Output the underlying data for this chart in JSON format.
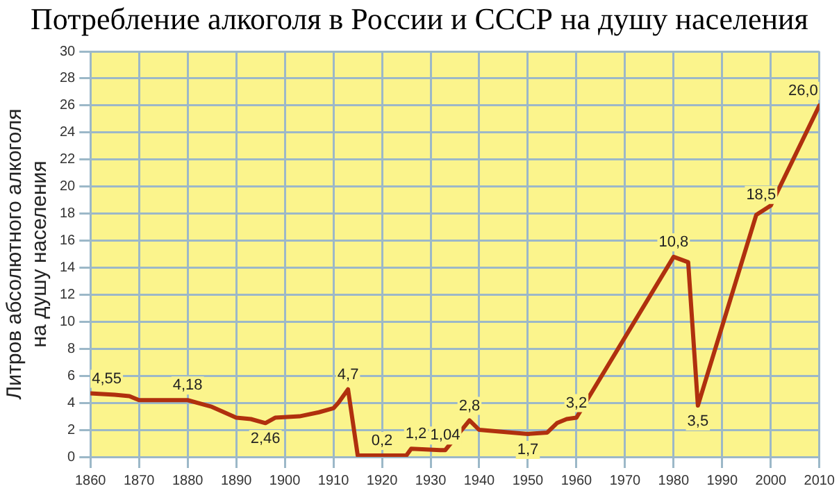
{
  "chart_data": {
    "type": "line",
    "title": "Потребление алкоголя в России и СССР на душу населения",
    "ylabel": "Литров абсолютного алкоголя\nна душу населения",
    "series": [
      {
        "color": "#b0300e",
        "x": [
          1860,
          1865,
          1868,
          1870,
          1880,
          1882,
          1885,
          1890,
          1893,
          1896,
          1898,
          1903,
          1907,
          1910,
          1911,
          1913,
          1915,
          1925,
          1926,
          1932,
          1933,
          1938,
          1940,
          1950,
          1954,
          1956,
          1958,
          1960,
          1980,
          1983,
          1985,
          1997,
          2000,
          2010
        ],
        "values": [
          4.7,
          4.6,
          4.5,
          4.2,
          4.2,
          4.0,
          3.7,
          2.9,
          2.8,
          2.5,
          2.9,
          3.0,
          3.3,
          3.6,
          4.0,
          5.0,
          0.1,
          0.1,
          0.6,
          0.5,
          0.5,
          2.7,
          2.0,
          1.7,
          1.8,
          2.5,
          2.8,
          2.9,
          14.8,
          14.4,
          3.8,
          17.9,
          18.6,
          26.0
        ]
      }
    ],
    "xlim": [
      1860,
      2010
    ],
    "xticks": [
      1860,
      1870,
      1880,
      1890,
      1900,
      1910,
      1920,
      1930,
      1940,
      1950,
      1960,
      1970,
      1980,
      1990,
      2000,
      2010
    ],
    "ylim": [
      0,
      30
    ],
    "yticks": [
      0,
      2,
      4,
      6,
      8,
      10,
      12,
      14,
      16,
      18,
      20,
      22,
      24,
      26,
      28,
      30
    ],
    "grid": true,
    "legend": false,
    "marker": "none",
    "line_style": "solid",
    "annotations": [
      {
        "text": "4,55",
        "x": 1860,
        "y": 4.7
      },
      {
        "text": "4,18",
        "x": 1880,
        "y": 4.2
      },
      {
        "text": "2,46",
        "x": 1896,
        "y": 2.5
      },
      {
        "text": "4,7",
        "x": 1913,
        "y": 5.0
      },
      {
        "text": "0,2",
        "x": 1920,
        "y": 0.1
      },
      {
        "text": "1,2",
        "x": 1927,
        "y": 0.6
      },
      {
        "text": "1,04",
        "x": 1933,
        "y": 0.5
      },
      {
        "text": "2,8",
        "x": 1938,
        "y": 2.7
      },
      {
        "text": "1,7",
        "x": 1950,
        "y": 1.7
      },
      {
        "text": "3,2",
        "x": 1960,
        "y": 2.9
      },
      {
        "text": "10,8",
        "x": 1980,
        "y": 14.8
      },
      {
        "text": "3,5",
        "x": 1985,
        "y": 3.8
      },
      {
        "text": "18,5",
        "x": 1998,
        "y": 18.3
      },
      {
        "text": "26,0",
        "x": 2010,
        "y": 26.0
      }
    ]
  }
}
